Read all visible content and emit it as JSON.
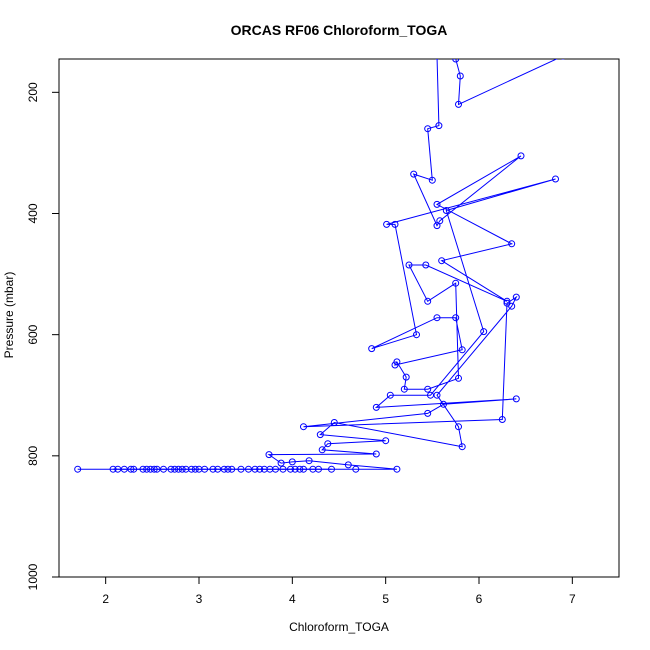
{
  "chart_data": {
    "type": "line",
    "title": "ORCAS RF06 Chloroform_TOGA",
    "xlabel": "Chloroform_TOGA",
    "ylabel": "Pressure (mbar)",
    "xlim": [
      1.5,
      7.5
    ],
    "ylim": [
      1000,
      145
    ],
    "y_inverted": true,
    "xticks": [
      2,
      3,
      4,
      5,
      6,
      7
    ],
    "yticks": [
      200,
      400,
      600,
      800,
      1000
    ],
    "grid": false,
    "colors": {
      "series": "#0000ff",
      "axis": "#000000"
    },
    "series": [
      {
        "marker": "open-circle",
        "points": [
          [
            6.9,
            140
          ],
          [
            5.78,
            220
          ],
          [
            5.8,
            173
          ],
          [
            5.75,
            145
          ],
          [
            5.55,
            140
          ],
          [
            5.57,
            255
          ],
          [
            5.45,
            260
          ],
          [
            5.5,
            345
          ],
          [
            5.3,
            335
          ],
          [
            5.55,
            420
          ],
          [
            5.58,
            412
          ],
          [
            6.45,
            305
          ],
          [
            5.55,
            385
          ],
          [
            6.35,
            450
          ],
          [
            5.6,
            478
          ],
          [
            6.3,
            545
          ],
          [
            5.43,
            485
          ],
          [
            5.25,
            485
          ],
          [
            5.45,
            545
          ],
          [
            5.75,
            515
          ],
          [
            5.78,
            672
          ],
          [
            5.45,
            690
          ],
          [
            5.2,
            690
          ],
          [
            5.22,
            670
          ],
          [
            5.12,
            645
          ],
          [
            5.1,
            650
          ],
          [
            5.82,
            625
          ],
          [
            5.75,
            572
          ],
          [
            5.55,
            572
          ],
          [
            4.85,
            623
          ],
          [
            5.33,
            600
          ],
          [
            5.1,
            418
          ],
          [
            5.01,
            418
          ],
          [
            6.82,
            343
          ],
          [
            5.65,
            395
          ],
          [
            6.05,
            595
          ],
          [
            5.48,
            700
          ],
          [
            5.05,
            700
          ],
          [
            4.9,
            720
          ],
          [
            6.4,
            706
          ],
          [
            5.62,
            715
          ],
          [
            5.45,
            730
          ],
          [
            4.12,
            752
          ],
          [
            6.25,
            740
          ],
          [
            6.3,
            548
          ],
          [
            6.4,
            538
          ],
          [
            6.35,
            553
          ],
          [
            5.55,
            700
          ],
          [
            5.78,
            752
          ],
          [
            5.82,
            785
          ],
          [
            4.45,
            745
          ],
          [
            4.3,
            765
          ],
          [
            5.0,
            775
          ],
          [
            4.38,
            780
          ],
          [
            4.32,
            790
          ],
          [
            4.9,
            797
          ],
          [
            3.75,
            798
          ],
          [
            3.88,
            812
          ],
          [
            4.0,
            810
          ],
          [
            4.18,
            808
          ],
          [
            4.6,
            815
          ],
          [
            5.12,
            822
          ],
          [
            4.68,
            822
          ],
          [
            1.7,
            822
          ]
        ]
      },
      {
        "marker": "open-circle",
        "points": [
          [
            2.08,
            822
          ],
          [
            2.13,
            822
          ],
          [
            2.2,
            822
          ],
          [
            2.27,
            822
          ],
          [
            2.3,
            822
          ],
          [
            2.4,
            822
          ],
          [
            2.44,
            822
          ],
          [
            2.48,
            822
          ],
          [
            2.52,
            822
          ],
          [
            2.55,
            822
          ],
          [
            2.62,
            822
          ],
          [
            2.7,
            822
          ],
          [
            2.74,
            822
          ],
          [
            2.78,
            822
          ],
          [
            2.82,
            822
          ],
          [
            2.86,
            822
          ],
          [
            2.92,
            822
          ],
          [
            2.96,
            822
          ],
          [
            3.0,
            822
          ],
          [
            3.06,
            822
          ],
          [
            3.15,
            822
          ],
          [
            3.2,
            822
          ],
          [
            3.27,
            822
          ],
          [
            3.31,
            822
          ],
          [
            3.35,
            822
          ],
          [
            3.45,
            822
          ],
          [
            3.53,
            822
          ],
          [
            3.6,
            822
          ],
          [
            3.65,
            822
          ],
          [
            3.7,
            822
          ],
          [
            3.76,
            822
          ],
          [
            3.82,
            822
          ],
          [
            3.9,
            822
          ],
          [
            3.98,
            822
          ],
          [
            4.03,
            822
          ],
          [
            4.08,
            822
          ],
          [
            4.12,
            822
          ],
          [
            4.22,
            822
          ],
          [
            4.28,
            822
          ],
          [
            4.42,
            822
          ]
        ]
      }
    ]
  }
}
